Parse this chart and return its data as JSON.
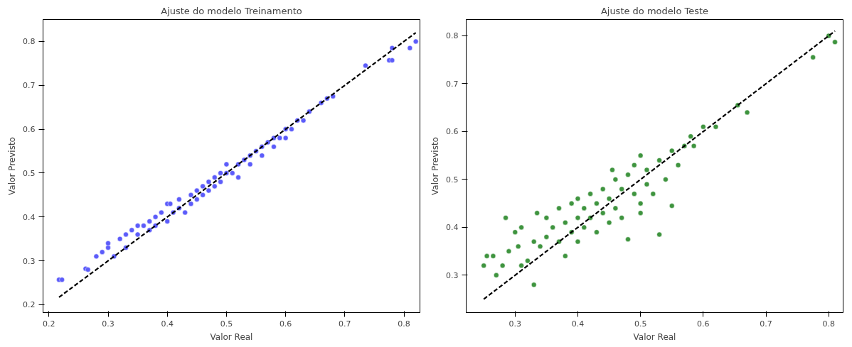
{
  "chart_data": [
    {
      "type": "scatter",
      "title": "Ajuste do modelo Treinamento",
      "xlabel": "Valor Real",
      "ylabel": "Valor Previsto",
      "xlim": [
        0.19,
        0.827
      ],
      "ylim": [
        0.182,
        0.85
      ],
      "xticks": [
        0.2,
        0.3,
        0.4,
        0.5,
        0.6,
        0.7,
        0.8
      ],
      "yticks": [
        0.2,
        0.3,
        0.4,
        0.5,
        0.6,
        0.7,
        0.8
      ],
      "grid": false,
      "series": [
        {
          "marker": "circle",
          "color": "#5c5cfa",
          "x": [
            0.217,
            0.222,
            0.262,
            0.266,
            0.28,
            0.29,
            0.3,
            0.3,
            0.31,
            0.32,
            0.33,
            0.33,
            0.34,
            0.35,
            0.35,
            0.36,
            0.37,
            0.37,
            0.38,
            0.38,
            0.39,
            0.4,
            0.4,
            0.41,
            0.42,
            0.42,
            0.43,
            0.44,
            0.44,
            0.45,
            0.45,
            0.46,
            0.46,
            0.47,
            0.47,
            0.48,
            0.48,
            0.49,
            0.49,
            0.5,
            0.5,
            0.51,
            0.52,
            0.52,
            0.53,
            0.54,
            0.54,
            0.55,
            0.56,
            0.56,
            0.57,
            0.58,
            0.58,
            0.59,
            0.6,
            0.6,
            0.61,
            0.62,
            0.63,
            0.64,
            0.66,
            0.67,
            0.68,
            0.735,
            0.775,
            0.78,
            0.78,
            0.81,
            0.82,
            0.405
          ],
          "values": [
            0.257,
            0.257,
            0.282,
            0.28,
            0.31,
            0.32,
            0.33,
            0.34,
            0.31,
            0.35,
            0.36,
            0.33,
            0.37,
            0.36,
            0.38,
            0.38,
            0.37,
            0.39,
            0.4,
            0.38,
            0.41,
            0.43,
            0.39,
            0.41,
            0.44,
            0.42,
            0.41,
            0.45,
            0.43,
            0.46,
            0.44,
            0.47,
            0.45,
            0.48,
            0.46,
            0.49,
            0.47,
            0.5,
            0.48,
            0.5,
            0.52,
            0.5,
            0.49,
            0.52,
            0.53,
            0.54,
            0.52,
            0.55,
            0.56,
            0.54,
            0.57,
            0.58,
            0.56,
            0.58,
            0.6,
            0.58,
            0.6,
            0.62,
            0.62,
            0.64,
            0.66,
            0.67,
            0.675,
            0.745,
            0.757,
            0.757,
            0.785,
            0.785,
            0.8,
            0.43
          ]
        },
        {
          "type": "line",
          "color": "#000000",
          "line_style": "dashed",
          "marker": "none",
          "x": [
            0.217,
            0.82
          ],
          "values": [
            0.217,
            0.82
          ]
        }
      ]
    },
    {
      "type": "scatter",
      "title": "Ajuste do modelo Teste",
      "xlabel": "Valor Real",
      "ylabel": "Valor Previsto",
      "xlim": [
        0.222,
        0.823
      ],
      "ylim": [
        0.222,
        0.834
      ],
      "xticks": [
        0.3,
        0.4,
        0.5,
        0.6,
        0.7,
        0.8
      ],
      "yticks": [
        0.3,
        0.4,
        0.5,
        0.6,
        0.7,
        0.8
      ],
      "grid": false,
      "series": [
        {
          "marker": "circle",
          "color": "#3f943f",
          "x": [
            0.25,
            0.255,
            0.265,
            0.27,
            0.28,
            0.285,
            0.29,
            0.3,
            0.305,
            0.31,
            0.31,
            0.32,
            0.33,
            0.33,
            0.335,
            0.34,
            0.35,
            0.35,
            0.36,
            0.37,
            0.37,
            0.38,
            0.38,
            0.39,
            0.39,
            0.4,
            0.4,
            0.4,
            0.41,
            0.41,
            0.42,
            0.42,
            0.43,
            0.43,
            0.44,
            0.44,
            0.45,
            0.45,
            0.46,
            0.46,
            0.47,
            0.47,
            0.48,
            0.48,
            0.49,
            0.49,
            0.5,
            0.5,
            0.51,
            0.51,
            0.52,
            0.53,
            0.53,
            0.54,
            0.55,
            0.55,
            0.56,
            0.57,
            0.58,
            0.585,
            0.6,
            0.62,
            0.655,
            0.67,
            0.775,
            0.8,
            0.81,
            0.5,
            0.455
          ],
          "values": [
            0.32,
            0.34,
            0.34,
            0.3,
            0.32,
            0.42,
            0.35,
            0.39,
            0.36,
            0.4,
            0.32,
            0.33,
            0.28,
            0.37,
            0.43,
            0.36,
            0.38,
            0.42,
            0.4,
            0.44,
            0.37,
            0.41,
            0.34,
            0.45,
            0.39,
            0.42,
            0.46,
            0.37,
            0.44,
            0.4,
            0.47,
            0.42,
            0.39,
            0.45,
            0.48,
            0.43,
            0.41,
            0.46,
            0.5,
            0.44,
            0.48,
            0.42,
            0.51,
            0.375,
            0.47,
            0.53,
            0.55,
            0.45,
            0.49,
            0.52,
            0.47,
            0.385,
            0.54,
            0.5,
            0.445,
            0.56,
            0.53,
            0.57,
            0.59,
            0.57,
            0.61,
            0.61,
            0.655,
            0.64,
            0.755,
            0.8,
            0.787,
            0.43,
            0.52
          ]
        },
        {
          "type": "line",
          "color": "#000000",
          "line_style": "dashed",
          "marker": "none",
          "x": [
            0.25,
            0.81
          ],
          "values": [
            0.25,
            0.81
          ]
        }
      ]
    }
  ]
}
